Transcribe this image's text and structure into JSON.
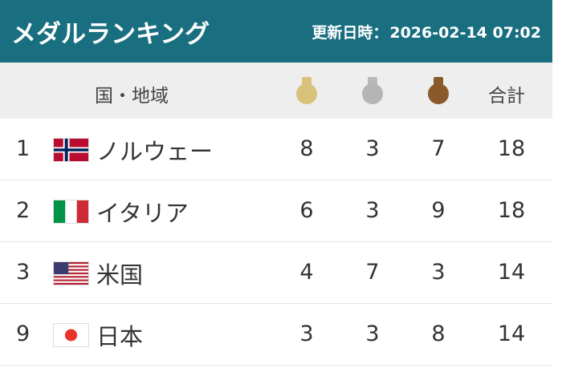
{
  "header": {
    "title": "メダルランキング",
    "updated_label": "更新日時：",
    "updated_value": "2026-02-14 07:02"
  },
  "columns": {
    "country": "国・地域",
    "gold_icon": "gold-medal-icon",
    "silver_icon": "silver-medal-icon",
    "bronze_icon": "bronze-medal-icon",
    "total": "合計"
  },
  "colors": {
    "header_bg": "#196f80",
    "gold": "#d6c27a",
    "silver": "#b5b5b5",
    "bronze": "#8b5a2b"
  },
  "rows": [
    {
      "rank": "1",
      "flag": "norway-flag-icon",
      "country": "ノルウェー",
      "gold": "8",
      "silver": "3",
      "bronze": "7",
      "total": "18"
    },
    {
      "rank": "2",
      "flag": "italy-flag-icon",
      "country": "イタリア",
      "gold": "6",
      "silver": "3",
      "bronze": "9",
      "total": "18"
    },
    {
      "rank": "3",
      "flag": "usa-flag-icon",
      "country": "米国",
      "gold": "4",
      "silver": "7",
      "bronze": "3",
      "total": "14"
    },
    {
      "rank": "9",
      "flag": "japan-flag-icon",
      "country": "日本",
      "gold": "3",
      "silver": "3",
      "bronze": "8",
      "total": "14"
    }
  ]
}
